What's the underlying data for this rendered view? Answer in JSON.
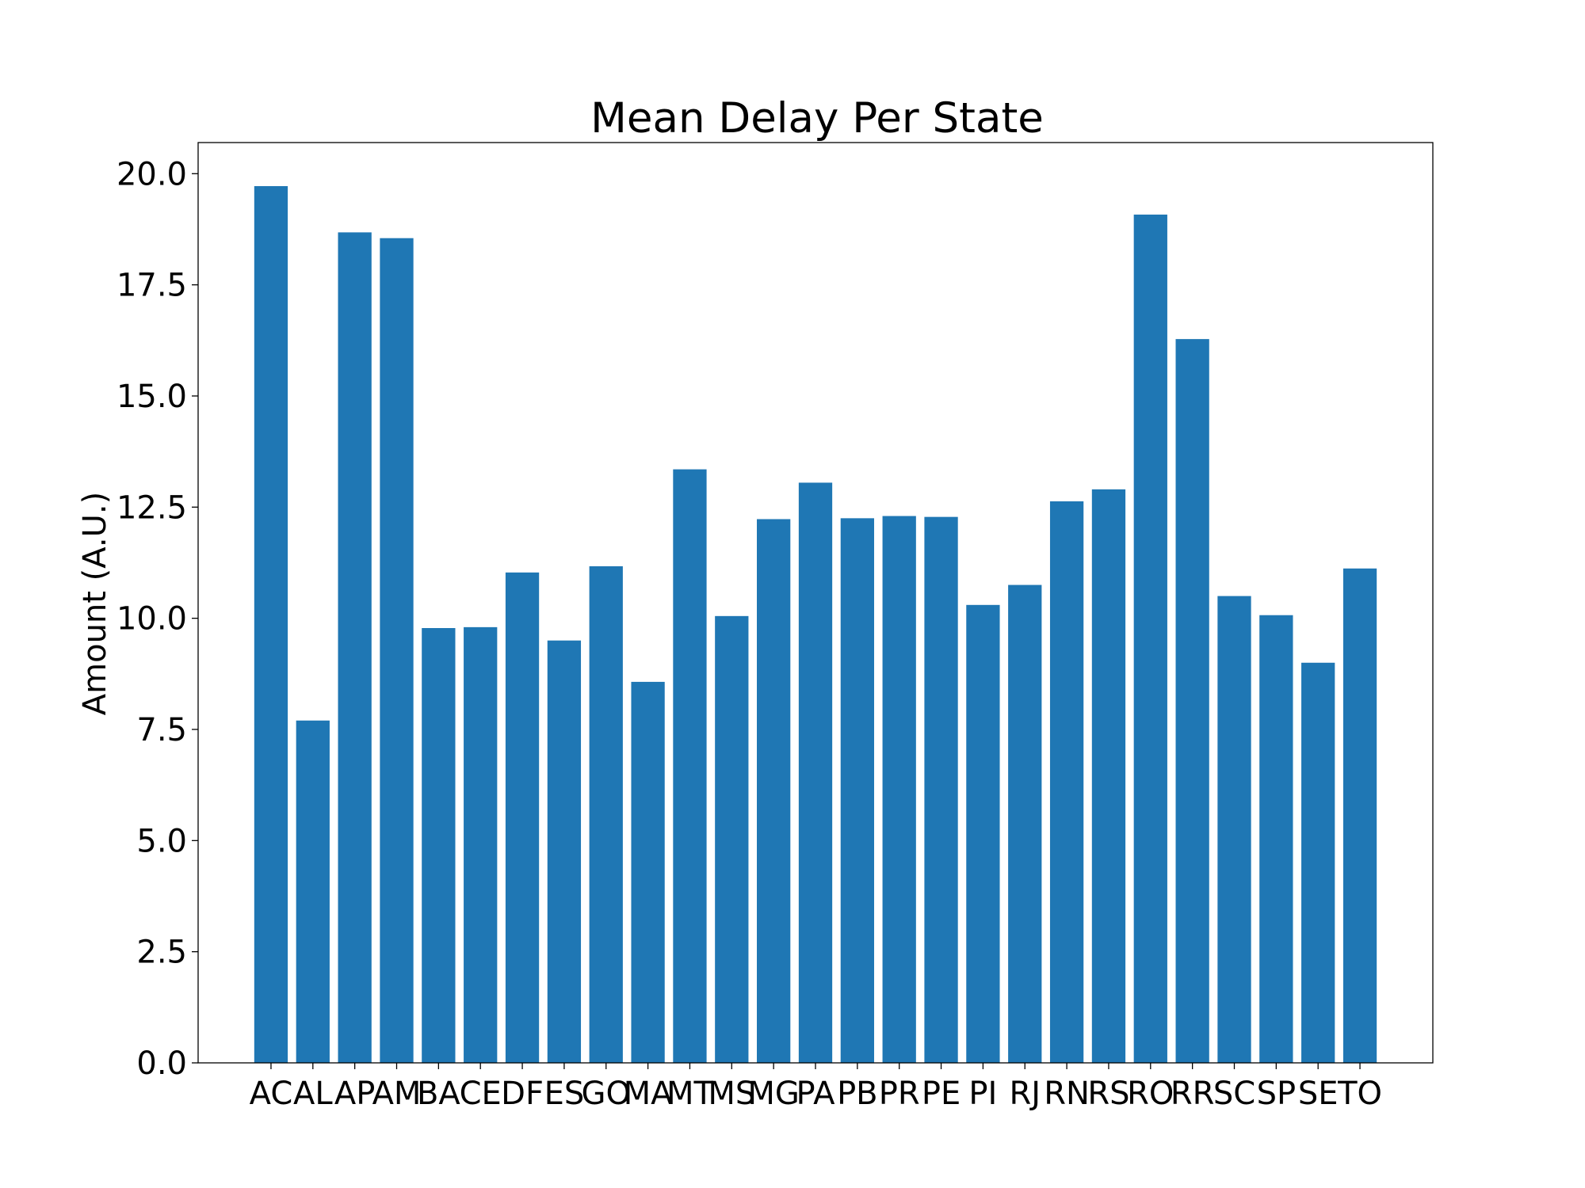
{
  "chart_data": {
    "type": "bar",
    "title": "Mean Delay Per State",
    "xlabel": "",
    "ylabel": "Amount (A.U.)",
    "categories": [
      "AC",
      "AL",
      "AP",
      "AM",
      "BA",
      "CE",
      "DF",
      "ES",
      "GO",
      "MA",
      "MT",
      "MS",
      "MG",
      "PA",
      "PB",
      "PR",
      "PE",
      "PI",
      "RJ",
      "RN",
      "RS",
      "RO",
      "RR",
      "SC",
      "SP",
      "SE",
      "TO"
    ],
    "values": [
      19.72,
      7.7,
      18.68,
      18.55,
      9.78,
      9.8,
      11.03,
      9.5,
      11.17,
      8.57,
      13.35,
      10.05,
      12.23,
      13.05,
      12.25,
      12.3,
      12.28,
      10.3,
      10.75,
      12.63,
      12.9,
      19.08,
      16.28,
      10.5,
      10.07,
      9.0,
      11.12
    ],
    "ylim": [
      0,
      20.7
    ],
    "yticks": [
      "0.0",
      "2.5",
      "5.0",
      "7.5",
      "10.0",
      "12.5",
      "15.0",
      "17.5",
      "20.0"
    ],
    "grid": false,
    "bar_color": "#1f77b4"
  }
}
